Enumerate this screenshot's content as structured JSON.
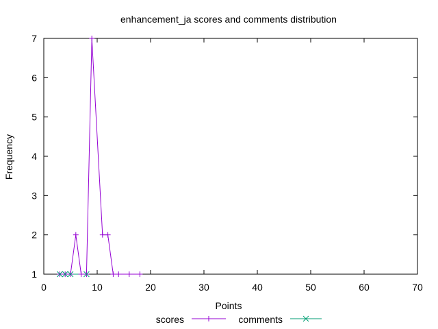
{
  "chart_data": {
    "type": "line",
    "title": "enhancement_ja scores and comments distribution",
    "xlabel": "Points",
    "ylabel": "Frequency",
    "xlim": [
      0,
      70
    ],
    "ylim": [
      1,
      7
    ],
    "xticks": [
      "0",
      "10",
      "20",
      "30",
      "40",
      "50",
      "60",
      "70"
    ],
    "yticks": [
      "1",
      "2",
      "3",
      "4",
      "5",
      "6",
      "7"
    ],
    "grid": false,
    "legend_position": "bottom",
    "series": [
      {
        "name": "scores",
        "color": "#9400d3",
        "marker": "plus",
        "points": [
          [
            3,
            1
          ],
          [
            4,
            1
          ],
          [
            5,
            1
          ],
          [
            6,
            2
          ],
          [
            7,
            1
          ],
          [
            8,
            1
          ],
          [
            9,
            7
          ],
          [
            11,
            2
          ],
          [
            12,
            2
          ],
          [
            13,
            1
          ],
          [
            14,
            1
          ],
          [
            16,
            1
          ],
          [
            18,
            1
          ]
        ]
      },
      {
        "name": "comments",
        "color": "#009e73",
        "marker": "x",
        "points": [
          [
            3,
            1
          ],
          [
            4,
            1
          ],
          [
            5,
            1
          ],
          [
            8,
            1
          ]
        ]
      }
    ]
  }
}
